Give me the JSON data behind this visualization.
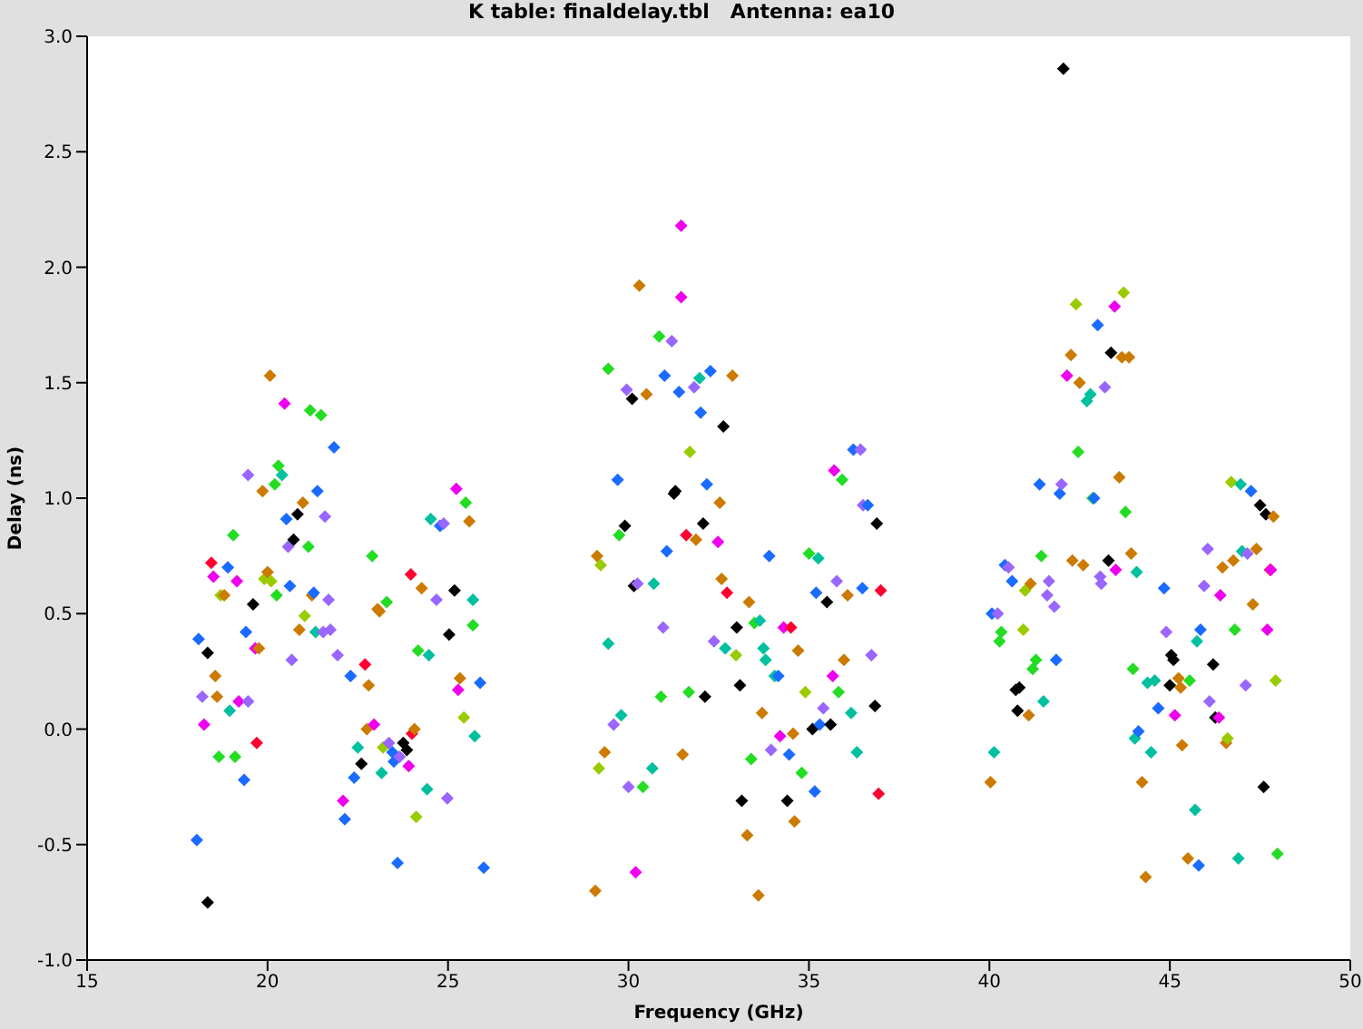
{
  "chart_data": {
    "type": "scatter",
    "title": "K table: finaldelay.tbl   Antenna: ea10",
    "xlabel": "Frequency (GHz)",
    "ylabel": "Delay (ns)",
    "marker": "diamond",
    "grid": false,
    "xlim": [
      15,
      50
    ],
    "xticks": [
      15,
      20,
      25,
      30,
      35,
      40,
      45,
      50
    ],
    "ylim": [
      -1,
      3
    ],
    "yticks": [
      {
        "value": -1,
        "label": "-1.0"
      },
      {
        "value": -0.5,
        "label": "-0.5"
      },
      {
        "value": 0,
        "label": "0.0"
      },
      {
        "value": 0.5,
        "label": "0.5"
      },
      {
        "value": 1,
        "label": "1.0"
      },
      {
        "value": 1.5,
        "label": "1.5"
      },
      {
        "value": 2,
        "label": "2.0"
      },
      {
        "value": 2.5,
        "label": "2.5"
      },
      {
        "value": 3,
        "label": "3.0"
      }
    ],
    "series": [
      {
        "x": [
          18.09,
          18.04,
          18.19,
          18.24,
          18.34,
          18.34,
          18.44,
          18.5,
          18.55,
          18.6,
          18.65,
          18.7,
          18.8,
          18.9,
          18.95,
          19.05,
          19.1,
          19.15,
          19.2,
          19.35,
          19.4,
          19.46,
          19.46,
          19.6,
          19.66,
          19.7,
          19.76,
          19.86,
          19.91,
          20.0,
          20.07,
          20.1,
          20.2,
          20.25,
          20.3,
          20.4,
          20.47,
          20.52,
          20.57,
          20.62,
          20.67,
          20.72,
          20.83,
          20.88,
          20.98,
          21.03,
          21.13,
          21.18,
          21.23,
          21.28,
          21.33,
          21.38,
          21.48,
          21.54,
          21.59,
          21.69,
          21.74,
          21.84,
          21.94,
          22.09,
          22.14,
          22.3,
          22.4,
          22.5,
          22.6,
          22.7,
          22.75,
          22.8,
          22.9,
          22.95,
          23.05,
          23.1,
          23.16,
          23.2,
          23.3,
          23.36,
          23.46,
          23.5,
          23.6,
          23.66,
          23.76,
          23.86,
          23.91,
          23.97,
          24.0,
          24.07,
          24.12,
          24.17,
          24.27,
          24.42,
          24.47,
          24.52,
          24.68,
          24.78,
          24.88,
          24.98,
          25.03,
          25.18,
          25.23,
          25.28,
          25.33,
          25.44,
          25.49,
          25.59,
          25.69,
          25.69,
          25.74,
          25.89,
          25.99,
          29.08,
          29.13,
          29.18,
          29.23,
          29.34,
          29.44,
          29.44,
          29.59,
          29.7,
          29.74,
          29.8,
          29.9,
          29.95,
          30.0,
          30.1,
          30.15,
          30.2,
          30.25,
          30.3,
          30.4,
          30.5,
          30.66,
          30.7,
          30.85,
          30.9,
          30.96,
          31.0,
          31.06,
          31.2,
          31.26,
          31.3,
          31.4,
          31.46,
          31.46,
          31.5,
          31.6,
          31.67,
          31.7,
          31.82,
          31.87,
          31.97,
          32.0,
          32.07,
          32.12,
          32.17,
          32.27,
          32.37,
          32.48,
          32.53,
          32.58,
          32.63,
          32.68,
          32.73,
          32.88,
          32.98,
          33.0,
          33.09,
          33.14,
          33.29,
          33.34,
          33.4,
          33.49,
          33.6,
          33.64,
          33.7,
          33.74,
          33.8,
          33.9,
          33.95,
          34.05,
          34.15,
          34.2,
          34.3,
          34.4,
          34.45,
          34.5,
          34.56,
          34.6,
          34.7,
          34.8,
          34.9,
          35.0,
          35.1,
          35.16,
          35.2,
          35.26,
          35.3,
          35.4,
          35.5,
          35.6,
          35.66,
          35.7,
          35.77,
          35.82,
          35.92,
          35.97,
          36.07,
          36.17,
          36.23,
          36.33,
          36.43,
          36.48,
          36.5,
          36.63,
          36.73,
          36.83,
          36.88,
          36.93,
          36.99,
          40.03,
          40.07,
          40.13,
          40.23,
          40.28,
          40.33,
          40.43,
          40.53,
          40.63,
          40.73,
          40.78,
          40.83,
          40.94,
          40.99,
          41.09,
          41.14,
          41.2,
          41.29,
          41.39,
          41.44,
          41.5,
          41.6,
          41.65,
          41.8,
          41.85,
          41.95,
          42.0,
          42.05,
          42.15,
          42.26,
          42.3,
          42.4,
          42.46,
          42.5,
          42.6,
          42.7,
          42.8,
          42.86,
          42.9,
          43.0,
          43.07,
          43.1,
          43.2,
          43.3,
          43.37,
          43.47,
          43.5,
          43.6,
          43.67,
          43.72,
          43.77,
          43.87,
          43.93,
          43.98,
          44.03,
          44.08,
          44.13,
          44.23,
          44.33,
          44.38,
          44.48,
          44.58,
          44.68,
          44.84,
          44.9,
          45.0,
          45.04,
          45.1,
          45.14,
          45.24,
          45.3,
          45.34,
          45.5,
          45.55,
          45.7,
          45.75,
          45.8,
          45.85,
          45.95,
          46.05,
          46.1,
          46.2,
          46.26,
          46.36,
          46.4,
          46.46,
          46.56,
          46.6,
          46.7,
          46.76,
          46.8,
          46.9,
          46.96,
          47.0,
          47.1,
          47.15,
          47.25,
          47.3,
          47.4,
          47.5,
          47.6,
          47.66,
          47.7,
          47.78,
          47.8,
          47.87,
          47.93,
          47.98
        ],
        "values": [
          0.39,
          -0.48,
          0.14,
          0.02,
          -0.75,
          0.33,
          0.72,
          0.66,
          0.23,
          0.14,
          -0.12,
          0.58,
          0.58,
          0.7,
          0.08,
          0.84,
          -0.12,
          0.64,
          0.12,
          -0.22,
          0.42,
          1.1,
          0.12,
          0.54,
          0.35,
          -0.06,
          0.35,
          1.03,
          0.65,
          0.68,
          1.53,
          0.64,
          1.06,
          0.58,
          1.14,
          1.1,
          1.41,
          0.91,
          0.79,
          0.62,
          0.3,
          0.82,
          0.93,
          0.43,
          0.98,
          0.49,
          0.79,
          1.38,
          0.58,
          0.59,
          0.42,
          1.03,
          1.36,
          0.42,
          0.92,
          0.56,
          0.43,
          1.22,
          0.32,
          -0.31,
          -0.39,
          0.23,
          -0.21,
          -0.08,
          -0.15,
          0.28,
          0.0,
          0.19,
          0.75,
          0.02,
          0.52,
          0.51,
          -0.19,
          -0.08,
          0.55,
          -0.06,
          -0.1,
          -0.14,
          -0.58,
          -0.12,
          -0.06,
          -0.09,
          -0.16,
          0.67,
          -0.02,
          0.0,
          -0.38,
          0.34,
          0.61,
          -0.26,
          0.32,
          0.91,
          0.56,
          0.88,
          0.89,
          -0.3,
          0.41,
          0.6,
          1.04,
          0.17,
          0.22,
          0.05,
          0.98,
          0.9,
          0.45,
          0.56,
          -0.03,
          0.2,
          -0.6,
          -0.7,
          0.75,
          -0.17,
          0.71,
          -0.1,
          1.56,
          0.37,
          0.02,
          1.08,
          0.84,
          0.06,
          0.88,
          1.47,
          -0.25,
          1.43,
          0.62,
          -0.62,
          0.63,
          1.92,
          -0.25,
          1.45,
          -0.17,
          0.63,
          1.7,
          0.14,
          0.44,
          1.53,
          0.77,
          1.68,
          1.02,
          1.03,
          1.46,
          2.18,
          1.87,
          -0.11,
          0.84,
          0.16,
          1.2,
          1.48,
          0.82,
          1.52,
          1.37,
          0.89,
          0.14,
          1.06,
          1.55,
          0.38,
          0.81,
          0.98,
          0.65,
          1.31,
          0.35,
          0.59,
          1.53,
          0.32,
          0.44,
          0.19,
          -0.31,
          -0.46,
          0.55,
          -0.13,
          0.46,
          -0.72,
          0.47,
          0.07,
          0.35,
          0.3,
          0.75,
          -0.09,
          0.23,
          0.23,
          -0.03,
          0.44,
          -0.31,
          -0.11,
          0.44,
          -0.02,
          -0.4,
          0.34,
          -0.19,
          0.16,
          0.76,
          0.0,
          -0.27,
          0.59,
          0.74,
          0.02,
          0.09,
          0.55,
          0.02,
          0.23,
          1.12,
          0.64,
          0.16,
          1.08,
          0.3,
          0.58,
          0.07,
          1.21,
          -0.1,
          1.21,
          0.61,
          0.97,
          0.97,
          0.32,
          0.1,
          0.89,
          -0.28,
          0.6,
          -0.23,
          0.5,
          -0.1,
          0.5,
          0.38,
          0.42,
          0.71,
          0.7,
          0.64,
          0.17,
          0.08,
          0.18,
          0.43,
          0.6,
          0.06,
          0.63,
          0.26,
          0.3,
          1.06,
          0.75,
          0.12,
          0.58,
          0.64,
          0.53,
          0.3,
          1.02,
          1.06,
          2.86,
          1.53,
          1.62,
          0.73,
          1.84,
          1.2,
          1.5,
          0.71,
          1.42,
          1.45,
          1.0,
          1.0,
          1.75,
          0.66,
          0.63,
          1.48,
          0.73,
          1.63,
          1.83,
          0.69,
          1.09,
          1.61,
          1.89,
          0.94,
          1.61,
          0.76,
          0.26,
          -0.04,
          0.68,
          -0.01,
          -0.23,
          -0.64,
          0.2,
          -0.1,
          0.21,
          0.09,
          0.61,
          0.42,
          0.19,
          0.32,
          0.3,
          0.06,
          0.22,
          0.18,
          -0.07,
          -0.56,
          0.21,
          -0.35,
          0.38,
          -0.59,
          0.43,
          0.62,
          0.78,
          0.12,
          0.28,
          0.05,
          0.05,
          0.58,
          0.7,
          -0.06,
          -0.04,
          1.07,
          0.73,
          0.43,
          -0.56,
          1.06,
          0.77,
          0.19,
          0.76,
          1.03,
          0.54,
          0.78,
          0.97,
          -0.25,
          0.93,
          0.43,
          0.69,
          0.69,
          0.92,
          0.21,
          -0.54
        ],
        "colors": [
          "#1a6bff",
          "#1a6bff",
          "#9966ff",
          "#ee00ee",
          "#000000",
          "#000000",
          "#ff0030",
          "#ee00ee",
          "#cc7a00",
          "#cc7a00",
          "#22dd22",
          "#99cc00",
          "#cc7a00",
          "#1a6bff",
          "#00c0a0",
          "#22dd22",
          "#22dd22",
          "#ee00ee",
          "#ee00ee",
          "#1a6bff",
          "#1a6bff",
          "#9966ff",
          "#9966ff",
          "#000000",
          "#ee00ee",
          "#ff0030",
          "#cc7a00",
          "#cc7a00",
          "#99cc00",
          "#cc7a00",
          "#cc7a00",
          "#99cc00",
          "#22dd22",
          "#22dd22",
          "#22dd22",
          "#00c0a0",
          "#ee00ee",
          "#1a6bff",
          "#9966ff",
          "#1a6bff",
          "#9966ff",
          "#000000",
          "#000000",
          "#cc7a00",
          "#cc7a00",
          "#99cc00",
          "#22dd22",
          "#22dd22",
          "#cc7a00",
          "#1a6bff",
          "#00c0a0",
          "#1a6bff",
          "#22dd22",
          "#9966ff",
          "#9966ff",
          "#9966ff",
          "#9966ff",
          "#1a6bff",
          "#9966ff",
          "#ee00ee",
          "#1a6bff",
          "#1a6bff",
          "#1a6bff",
          "#00c0a0",
          "#000000",
          "#ff0030",
          "#cc7a00",
          "#cc7a00",
          "#22dd22",
          "#ee00ee",
          "#cc7a00",
          "#cc7a00",
          "#00c0a0",
          "#99cc00",
          "#22dd22",
          "#9966ff",
          "#1a6bff",
          "#1a6bff",
          "#1a6bff",
          "#9966ff",
          "#000000",
          "#000000",
          "#ee00ee",
          "#ff0030",
          "#ff0030",
          "#cc7a00",
          "#99cc00",
          "#22dd22",
          "#cc7a00",
          "#00c0a0",
          "#00c0a0",
          "#00c0a0",
          "#9966ff",
          "#1a6bff",
          "#9966ff",
          "#9966ff",
          "#000000",
          "#000000",
          "#ee00ee",
          "#ee00ee",
          "#cc7a00",
          "#99cc00",
          "#22dd22",
          "#cc7a00",
          "#22dd22",
          "#00c0a0",
          "#00c0a0",
          "#1a6bff",
          "#1a6bff",
          "#cc7a00",
          "#cc7a00",
          "#99cc00",
          "#99cc00",
          "#cc7a00",
          "#22dd22",
          "#00c0a0",
          "#9966ff",
          "#1a6bff",
          "#22dd22",
          "#00c0a0",
          "#000000",
          "#9966ff",
          "#9966ff",
          "#000000",
          "#000000",
          "#ee00ee",
          "#9966ff",
          "#cc7a00",
          "#22dd22",
          "#cc7a00",
          "#00c0a0",
          "#00c0a0",
          "#22dd22",
          "#22dd22",
          "#9966ff",
          "#1a6bff",
          "#1a6bff",
          "#9966ff",
          "#000000",
          "#000000",
          "#1a6bff",
          "#ee00ee",
          "#ee00ee",
          "#cc7a00",
          "#ff0030",
          "#22dd22",
          "#99cc00",
          "#9966ff",
          "#cc7a00",
          "#00c0a0",
          "#1a6bff",
          "#000000",
          "#000000",
          "#1a6bff",
          "#1a6bff",
          "#9966ff",
          "#ee00ee",
          "#cc7a00",
          "#cc7a00",
          "#000000",
          "#00c0a0",
          "#ff0030",
          "#cc7a00",
          "#99cc00",
          "#000000",
          "#000000",
          "#000000",
          "#cc7a00",
          "#cc7a00",
          "#22dd22",
          "#22dd22",
          "#cc7a00",
          "#00c0a0",
          "#cc7a00",
          "#00c0a0",
          "#00c0a0",
          "#1a6bff",
          "#9966ff",
          "#00c0a0",
          "#1a6bff",
          "#ee00ee",
          "#ee00ee",
          "#000000",
          "#1a6bff",
          "#ff0030",
          "#cc7a00",
          "#cc7a00",
          "#cc7a00",
          "#22dd22",
          "#99cc00",
          "#22dd22",
          "#000000",
          "#1a6bff",
          "#1a6bff",
          "#00c0a0",
          "#1a6bff",
          "#9966ff",
          "#000000",
          "#000000",
          "#ee00ee",
          "#ee00ee",
          "#9966ff",
          "#22dd22",
          "#22dd22",
          "#cc7a00",
          "#cc7a00",
          "#00c0a0",
          "#1a6bff",
          "#00c0a0",
          "#9966ff",
          "#1a6bff",
          "#9966ff",
          "#1a6bff",
          "#9966ff",
          "#000000",
          "#000000",
          "#ff0030",
          "#ff0030",
          "#cc7a00",
          "#1a6bff",
          "#00c0a0",
          "#9966ff",
          "#22dd22",
          "#22dd22",
          "#1a6bff",
          "#9966ff",
          "#1a6bff",
          "#000000",
          "#000000",
          "#000000",
          "#99cc00",
          "#99cc00",
          "#cc7a00",
          "#cc7a00",
          "#22dd22",
          "#22dd22",
          "#1a6bff",
          "#22dd22",
          "#00c0a0",
          "#9966ff",
          "#9966ff",
          "#9966ff",
          "#1a6bff",
          "#1a6bff",
          "#9966ff",
          "#000000",
          "#ee00ee",
          "#cc7a00",
          "#cc7a00",
          "#99cc00",
          "#22dd22",
          "#cc7a00",
          "#cc7a00",
          "#00c0a0",
          "#00c0a0",
          "#22dd22",
          "#1a6bff",
          "#1a6bff",
          "#9966ff",
          "#9966ff",
          "#9966ff",
          "#000000",
          "#000000",
          "#ee00ee",
          "#ee00ee",
          "#cc7a00",
          "#cc7a00",
          "#99cc00",
          "#22dd22",
          "#cc7a00",
          "#cc7a00",
          "#22dd22",
          "#00c0a0",
          "#00c0a0",
          "#1a6bff",
          "#cc7a00",
          "#cc7a00",
          "#00c0a0",
          "#00c0a0",
          "#00c0a0",
          "#1a6bff",
          "#1a6bff",
          "#9966ff",
          "#000000",
          "#000000",
          "#000000",
          "#ee00ee",
          "#cc7a00",
          "#cc7a00",
          "#cc7a00",
          "#cc7a00",
          "#22dd22",
          "#00c0a0",
          "#00c0a0",
          "#1a6bff",
          "#1a6bff",
          "#9966ff",
          "#9966ff",
          "#9966ff",
          "#000000",
          "#000000",
          "#ee00ee",
          "#ee00ee",
          "#cc7a00",
          "#cc7a00",
          "#99cc00",
          "#99cc00",
          "#cc7a00",
          "#22dd22",
          "#00c0a0",
          "#00c0a0",
          "#00c0a0",
          "#9966ff",
          "#9966ff",
          "#1a6bff",
          "#cc7a00",
          "#cc7a00",
          "#000000",
          "#000000",
          "#000000",
          "#ee00ee",
          "#ff0030",
          "#ee00ee",
          "#cc7a00",
          "#99cc00",
          "#22dd22"
        ]
      }
    ]
  }
}
